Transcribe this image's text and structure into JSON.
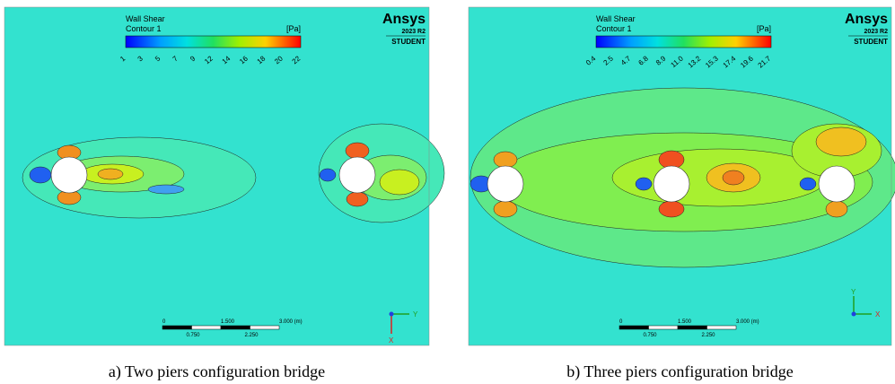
{
  "panels": [
    {
      "legend": {
        "title": "Wall Shear",
        "subtitle": "Contour 1",
        "unit": "[Pa]",
        "labels": [
          "1",
          "3",
          "5",
          "7",
          "9",
          "12",
          "14",
          "16",
          "18",
          "20",
          "22"
        ]
      },
      "logo": {
        "name": "Ansys",
        "version": "2023 R2",
        "edition": "STUDENT"
      },
      "scale_bar": {
        "labels": [
          "0",
          "1.500",
          "3.000 (m)"
        ],
        "sub_labels": [
          "0.750",
          "2.250"
        ]
      },
      "axes": {
        "labels": [
          "Y",
          "X"
        ]
      },
      "caption": "a) Two piers configuration bridge"
    },
    {
      "legend": {
        "title": "Wall Shear",
        "subtitle": "Contour 1",
        "unit": "[Pa]",
        "labels": [
          "0.4",
          "2.5",
          "4.7",
          "6.8",
          "8.9",
          "11.0",
          "13.2",
          "15.3",
          "17.4",
          "19.6",
          "21.7"
        ]
      },
      "logo": {
        "name": "Ansys",
        "version": "2023 R2",
        "edition": "STUDENT"
      },
      "scale_bar": {
        "labels": [
          "0",
          "1.500",
          "3.000 (m)"
        ],
        "sub_labels": [
          "0.750",
          "2.250"
        ]
      },
      "axes": {
        "labels": [
          "Y",
          "X"
        ]
      },
      "caption": "b) Three piers configuration bridge"
    }
  ]
}
